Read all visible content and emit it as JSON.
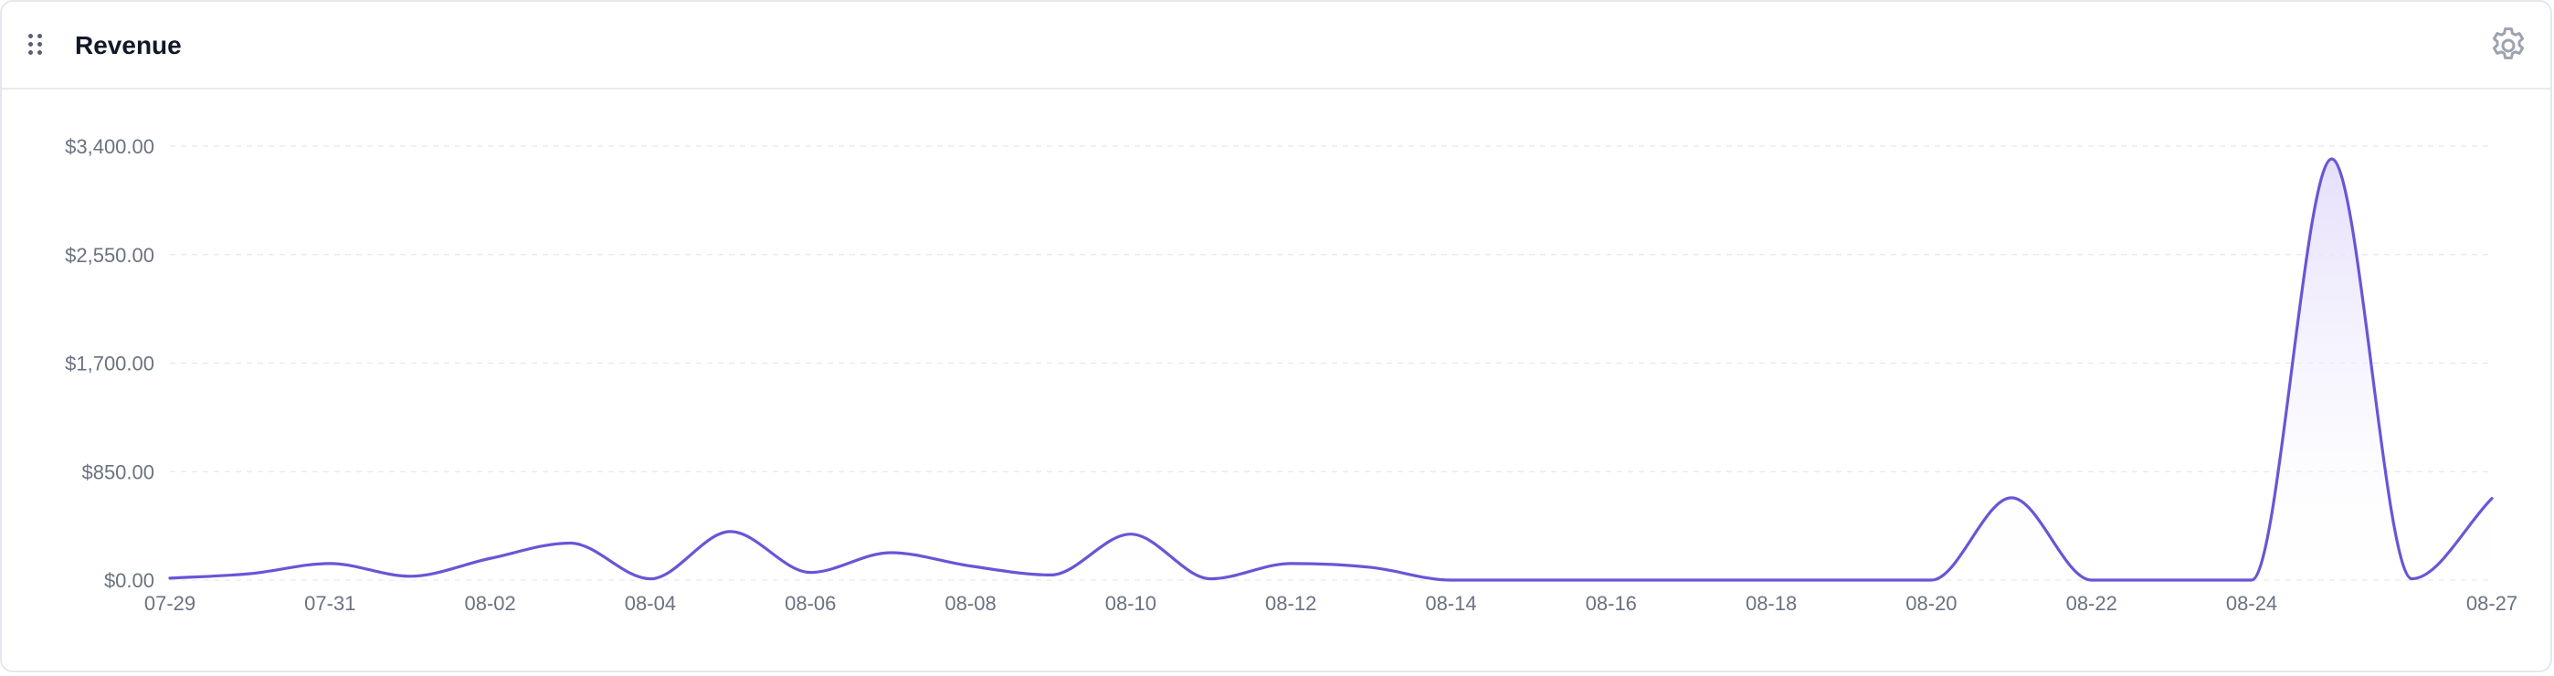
{
  "header": {
    "title": "Revenue"
  },
  "icons": {
    "drag": "drag-handle-icon",
    "settings": "gear-icon"
  },
  "colors": {
    "line": "#6b54d6",
    "fill_top": "#e4ddfb",
    "grid": "#e5e7eb",
    "text": "#6b7280"
  },
  "chart_data": {
    "type": "area",
    "title": "Revenue",
    "xlabel": "",
    "ylabel": "",
    "ylim": [
      0,
      3400
    ],
    "yticks": [
      {
        "value": 0,
        "label": "$0.00"
      },
      {
        "value": 850,
        "label": "$850.00"
      },
      {
        "value": 1700,
        "label": "$1,700.00"
      },
      {
        "value": 2550,
        "label": "$2,550.00"
      },
      {
        "value": 3400,
        "label": "$3,400.00"
      }
    ],
    "xtick_labels": [
      "07-29",
      "07-31",
      "08-02",
      "08-04",
      "08-06",
      "08-08",
      "08-10",
      "08-12",
      "08-14",
      "08-16",
      "08-18",
      "08-20",
      "08-22",
      "08-24",
      "08-27"
    ],
    "grid": true,
    "legend": "none",
    "series": [
      {
        "x": [
          "07-29",
          "07-30",
          "07-31",
          "08-01",
          "08-02",
          "08-03",
          "08-04",
          "08-05",
          "08-06",
          "08-07",
          "08-08",
          "08-09",
          "08-10",
          "08-11",
          "08-12",
          "08-13",
          "08-14",
          "08-15",
          "08-16",
          "08-17",
          "08-18",
          "08-19",
          "08-20",
          "08-21",
          "08-22",
          "08-23",
          "08-24",
          "08-25",
          "08-26",
          "08-27"
        ],
        "values": [
          15,
          50,
          130,
          30,
          170,
          290,
          10,
          380,
          60,
          215,
          110,
          40,
          360,
          10,
          130,
          100,
          0,
          0,
          0,
          0,
          0,
          0,
          0,
          645,
          0,
          0,
          0,
          3300,
          10,
          640
        ]
      }
    ]
  }
}
